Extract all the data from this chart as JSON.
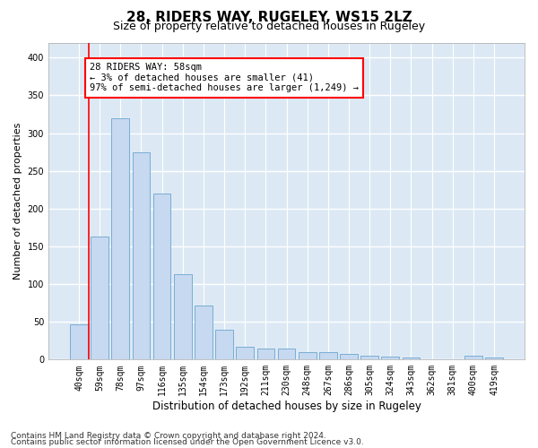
{
  "title1": "28, RIDERS WAY, RUGELEY, WS15 2LZ",
  "title2": "Size of property relative to detached houses in Rugeley",
  "xlabel": "Distribution of detached houses by size in Rugeley",
  "ylabel": "Number of detached properties",
  "footer1": "Contains HM Land Registry data © Crown copyright and database right 2024.",
  "footer2": "Contains public sector information licensed under the Open Government Licence v3.0.",
  "categories": [
    "40sqm",
    "59sqm",
    "78sqm",
    "97sqm",
    "116sqm",
    "135sqm",
    "154sqm",
    "173sqm",
    "192sqm",
    "211sqm",
    "230sqm",
    "248sqm",
    "267sqm",
    "286sqm",
    "305sqm",
    "324sqm",
    "343sqm",
    "362sqm",
    "381sqm",
    "400sqm",
    "419sqm"
  ],
  "values": [
    47,
    163,
    320,
    275,
    220,
    113,
    72,
    40,
    17,
    15,
    15,
    10,
    10,
    7,
    5,
    4,
    3,
    0,
    0,
    5,
    3
  ],
  "bar_color": "#c6d9f0",
  "bar_edge_color": "#7aadd4",
  "bg_color": "#dce9f5",
  "annotation_text": "28 RIDERS WAY: 58sqm\n← 3% of detached houses are smaller (41)\n97% of semi-detached houses are larger (1,249) →",
  "annotation_box_color": "white",
  "annotation_box_edge": "red",
  "ylim": [
    0,
    420
  ],
  "yticks": [
    0,
    50,
    100,
    150,
    200,
    250,
    300,
    350,
    400
  ],
  "grid_color": "#ffffff",
  "title1_fontsize": 11,
  "title2_fontsize": 9,
  "xlabel_fontsize": 8.5,
  "ylabel_fontsize": 8,
  "tick_fontsize": 7,
  "footer_fontsize": 6.5,
  "annotation_fontsize": 7.5
}
